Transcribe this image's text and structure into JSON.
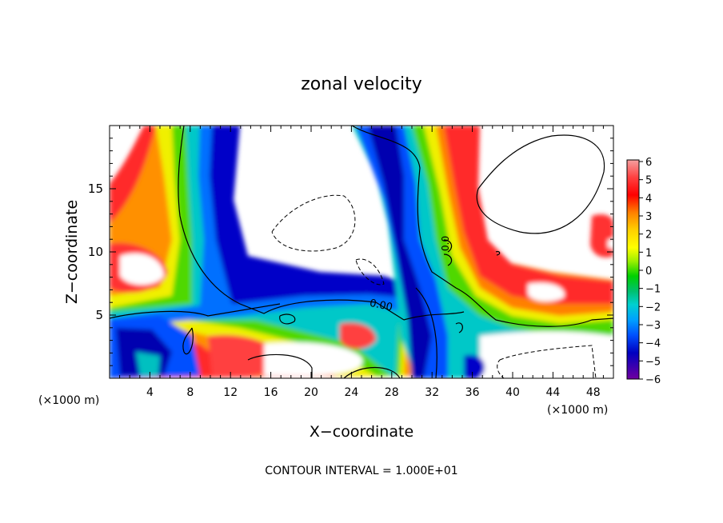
{
  "chart_data": {
    "type": "heatmap",
    "title": "zonal velocity",
    "xlabel": "X−coordinate",
    "ylabel": "Z−coordinate",
    "x_unit_label": "(×1000 m)",
    "x_unit_label_right": "(×1000 m)",
    "xlim": [
      0,
      50
    ],
    "ylim": [
      0,
      20
    ],
    "x_ticks": [
      4,
      8,
      12,
      16,
      20,
      24,
      28,
      32,
      36,
      40,
      44,
      48
    ],
    "y_ticks": [
      5,
      10,
      15
    ],
    "colorbar": {
      "labels": [
        "6",
        "5",
        "4",
        "3",
        "2",
        "1",
        "0",
        "−1",
        "−2",
        "−3",
        "−4",
        "−5",
        "−6"
      ],
      "range": [
        -6,
        6
      ],
      "colors": [
        "#f5a0a0",
        "#ff4040",
        "#ff0000",
        "#ff8000",
        "#ffd000",
        "#ffff00",
        "#c0f000",
        "#60e000",
        "#00d000",
        "#00c060",
        "#00d0d0",
        "#00a0ff",
        "#0060ff",
        "#0000e0",
        "#0000a0",
        "#7000a0"
      ]
    },
    "contour_labels": [
      "0.00",
      "0.0"
    ],
    "footer": "CONTOUR INTERVAL = 1.000E+01"
  }
}
